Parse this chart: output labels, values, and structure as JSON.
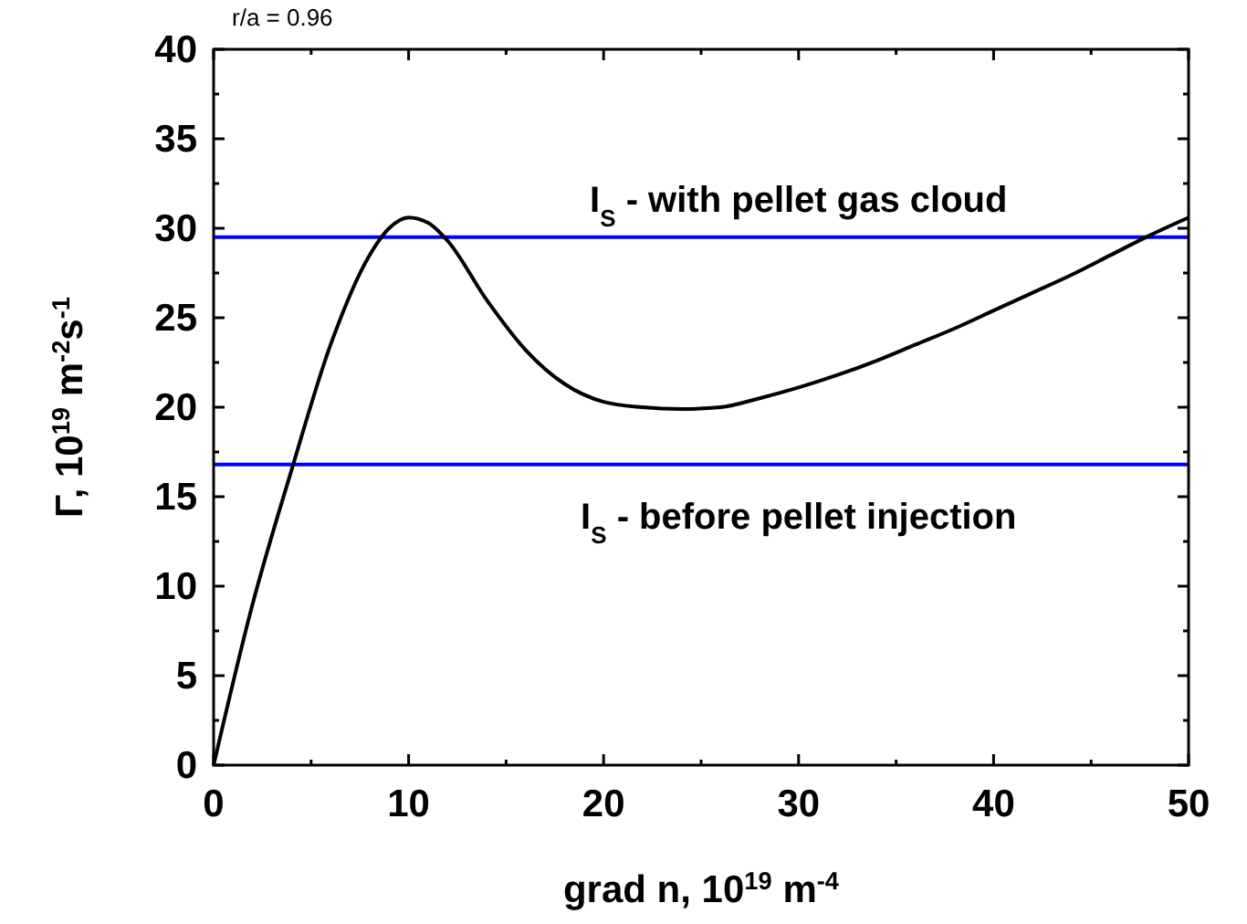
{
  "chart_data": {
    "type": "line",
    "xlabel": "grad n, 10$^{19}$ m$^{-4}$",
    "ylabel": "Γ, 10$^{19}$ m$^{-2}$s$^{-1}$",
    "annotations": [
      "r/a = 0.96"
    ],
    "x": [
      0,
      2,
      4,
      6,
      8,
      9,
      10,
      11,
      12,
      14,
      16,
      18,
      20,
      22,
      24,
      26,
      28,
      30,
      32,
      34,
      36,
      38,
      40,
      42,
      44,
      46,
      48,
      50
    ],
    "series": [
      {
        "color": "#000000",
        "values": [
          0,
          9,
          16.5,
          23.5,
          28.5,
          30,
          30.6,
          30.3,
          29.3,
          26,
          23.2,
          21.3,
          20.3,
          20,
          19.9,
          20,
          20.5,
          21.1,
          21.8,
          22.6,
          23.5,
          24.4,
          25.4,
          26.4,
          27.4,
          28.5,
          29.6,
          30.6
        ]
      }
    ],
    "xlim": [
      0,
      50
    ],
    "ylim": [
      0,
      40
    ],
    "xticks": [
      0,
      {
        "value": 5,
        "label": null
      },
      10,
      {
        "value": 15,
        "label": null
      },
      20,
      {
        "value": 25,
        "label": null
      },
      30,
      {
        "value": 35,
        "label": null
      },
      40,
      {
        "value": 45,
        "label": null
      },
      50
    ],
    "yticks": [
      0,
      {
        "value": 2.5,
        "label": null
      },
      5,
      {
        "value": 7.5,
        "label": null
      },
      10,
      {
        "value": 12.5,
        "label": null
      },
      15,
      {
        "value": 17.5,
        "label": null
      },
      20,
      {
        "value": 22.5,
        "label": null
      },
      25,
      {
        "value": 27.5,
        "label": null
      },
      30,
      {
        "value": 32.5,
        "label": null
      },
      35,
      {
        "value": 37.5,
        "label": null
      },
      40
    ],
    "ref_lines": [
      {
        "axis": "y",
        "value": 29.5,
        "label": "I$_{S}$ - with pellet gas cloud",
        "color": "#0000ff"
      },
      {
        "axis": "y",
        "value": 16.8,
        "label": "I$_{S}$ - before pellet injection",
        "color": "#0000ff"
      }
    ],
    "grid": false,
    "marker": "none",
    "line_style": "solid"
  }
}
